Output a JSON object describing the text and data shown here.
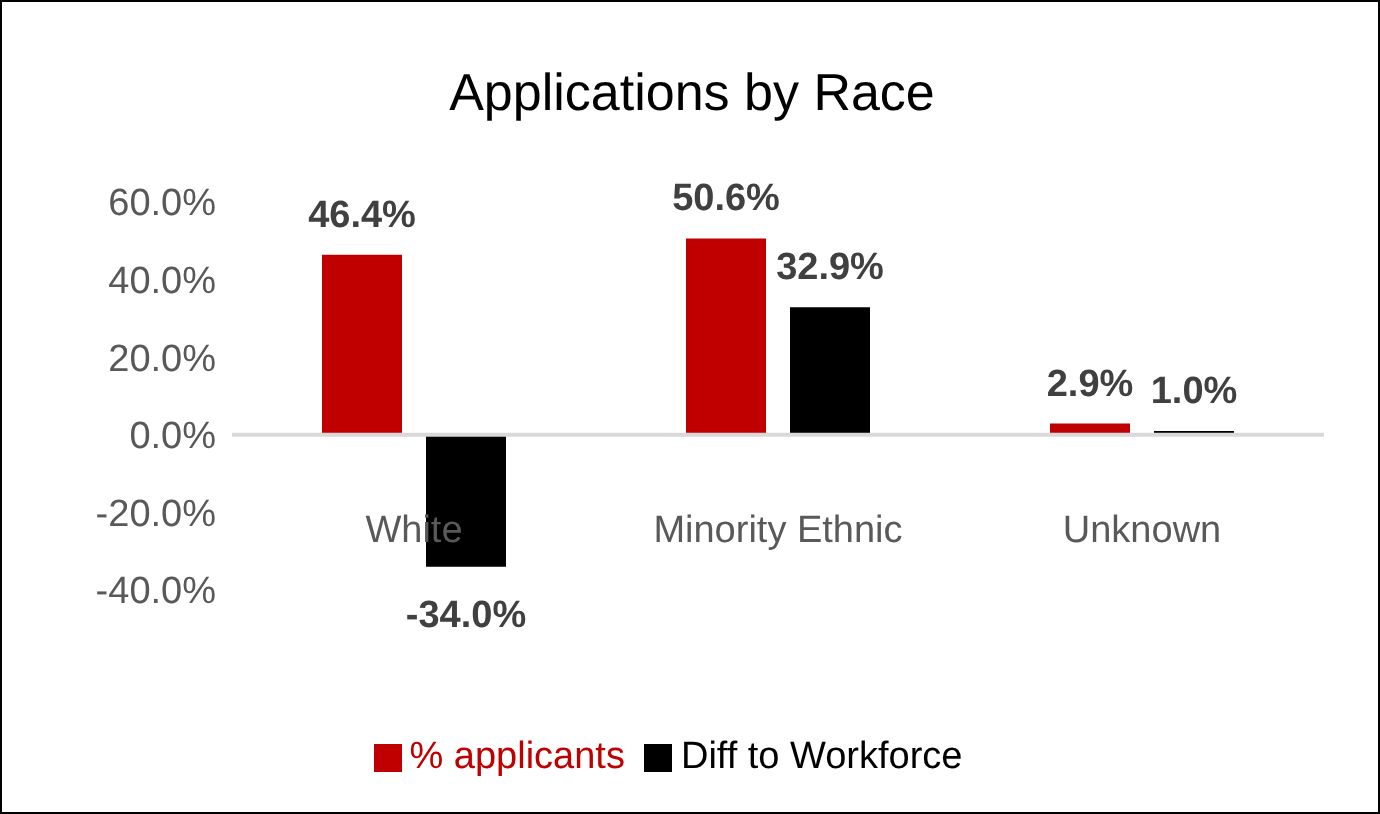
{
  "chart_data": {
    "type": "bar",
    "title": "Applications by Race",
    "categories": [
      "White",
      "Minority Ethnic",
      "Unknown"
    ],
    "series": [
      {
        "name": "% applicants",
        "color": "#c00000",
        "values": [
          46.4,
          50.6,
          2.9
        ],
        "value_labels": [
          "46.4%",
          "50.6%",
          "2.9%"
        ]
      },
      {
        "name": "Diff to Workforce",
        "color": "#000000",
        "values": [
          -34.0,
          32.9,
          1.0
        ],
        "value_labels": [
          "-34.0%",
          "32.9%",
          "1.0%"
        ]
      }
    ],
    "ylim": [
      -40,
      60
    ],
    "yticks": [
      {
        "value": -40,
        "label": "-40.0%"
      },
      {
        "value": -20,
        "label": "-20.0%"
      },
      {
        "value": 0,
        "label": "0.0%"
      },
      {
        "value": 20,
        "label": "20.0%"
      },
      {
        "value": 40,
        "label": "40.0%"
      },
      {
        "value": 60,
        "label": "60.0%"
      }
    ],
    "grid": false,
    "legend": "bottom"
  }
}
